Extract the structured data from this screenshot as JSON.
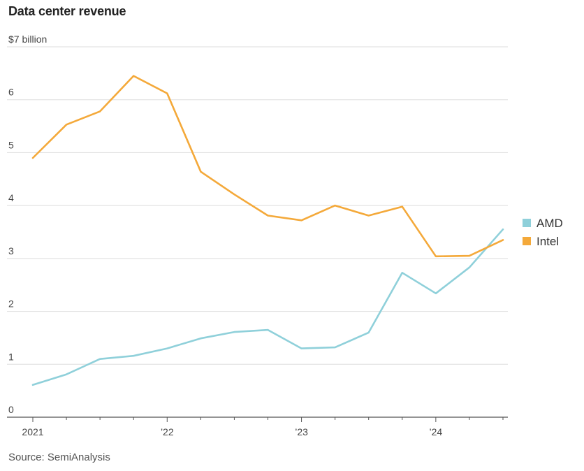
{
  "chart_data": {
    "type": "line",
    "title": "Data center revenue",
    "ylabel": "",
    "xlabel": "",
    "ylim": [
      0,
      7
    ],
    "yticks": [
      0,
      1,
      2,
      3,
      4,
      5,
      6,
      7
    ],
    "ytick_labels": [
      "0",
      "1",
      "2",
      "3",
      "4",
      "5",
      "6",
      "$7 billion"
    ],
    "x": [
      "2021 Q1",
      "2021 Q2",
      "2021 Q3",
      "2021 Q4",
      "2022 Q1",
      "2022 Q2",
      "2022 Q3",
      "2022 Q4",
      "2023 Q1",
      "2023 Q2",
      "2023 Q3",
      "2023 Q4",
      "2024 Q1",
      "2024 Q2",
      "2024 Q3"
    ],
    "xtick_labels": [
      "2021",
      "’22",
      "’23",
      "’24"
    ],
    "grid": true,
    "legend_position": "right",
    "series": [
      {
        "name": "AMD",
        "color": "#8fd0da",
        "values": [
          0.61,
          0.81,
          1.1,
          1.16,
          1.3,
          1.49,
          1.61,
          1.65,
          1.3,
          1.32,
          1.6,
          2.73,
          2.34,
          2.83,
          3.55
        ]
      },
      {
        "name": "Intel",
        "color": "#f4a93a",
        "values": [
          4.9,
          5.53,
          5.78,
          6.45,
          6.12,
          4.64,
          4.21,
          3.81,
          3.72,
          4.0,
          3.81,
          3.98,
          3.04,
          3.05,
          3.35
        ]
      }
    ],
    "source": "Source: SemiAnalysis"
  }
}
